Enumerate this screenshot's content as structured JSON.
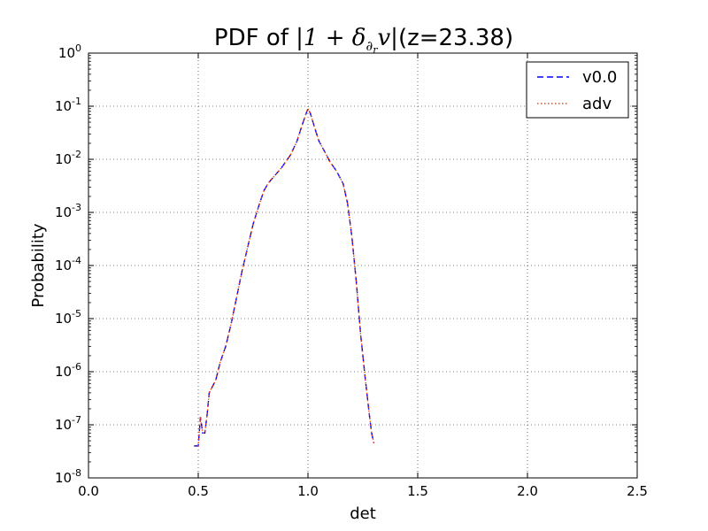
{
  "chart_data": {
    "type": "line",
    "title": {
      "prefix": "PDF of ",
      "math_open": "|1 + ",
      "delta": "δ",
      "subscript_main": "∂",
      "subscript_small": "r",
      "math_v": "v",
      "math_close": "|",
      "suffix": "(z=23.38)"
    },
    "xlabel": "det",
    "ylabel": "Probability",
    "xlim": [
      0.0,
      2.5
    ],
    "ylim_log10": [
      -8,
      0
    ],
    "yscale": "log",
    "grid": true,
    "legend_position": "top-right",
    "x_ticks": [
      "0.0",
      "0.5",
      "1.0",
      "1.5",
      "2.0",
      "2.5"
    ],
    "y_ticks": [
      {
        "base": "10",
        "exp": "0"
      },
      {
        "base": "10",
        "exp": "-1"
      },
      {
        "base": "10",
        "exp": "-2"
      },
      {
        "base": "10",
        "exp": "-3"
      },
      {
        "base": "10",
        "exp": "-4"
      },
      {
        "base": "10",
        "exp": "-5"
      },
      {
        "base": "10",
        "exp": "-6"
      },
      {
        "base": "10",
        "exp": "-7"
      },
      {
        "base": "10",
        "exp": "-8"
      }
    ],
    "x": [
      0.48,
      0.5,
      0.51,
      0.52,
      0.53,
      0.54,
      0.55,
      0.58,
      0.6,
      0.625,
      0.65,
      0.7,
      0.75,
      0.78,
      0.8,
      0.82,
      0.85,
      0.88,
      0.92,
      0.95,
      0.97,
      0.99,
      1.0,
      1.01,
      1.03,
      1.05,
      1.08,
      1.1,
      1.13,
      1.16,
      1.18,
      1.2,
      1.22,
      1.24,
      1.26,
      1.28,
      1.29,
      1.3
    ],
    "series": [
      {
        "name": "v0.0",
        "color": "#0000ff",
        "dash": "dashed",
        "values": [
          4e-08,
          4e-08,
          1.4e-07,
          7e-08,
          7e-08,
          1.5e-07,
          4e-07,
          7e-07,
          1.5e-06,
          3e-06,
          8e-06,
          8e-05,
          0.0006,
          0.0015,
          0.0026,
          0.0036,
          0.005,
          0.007,
          0.012,
          0.022,
          0.04,
          0.07,
          0.09,
          0.075,
          0.04,
          0.022,
          0.013,
          0.009,
          0.006,
          0.0035,
          0.0015,
          0.00035,
          5e-05,
          5e-06,
          8e-07,
          1.5e-07,
          7e-08,
          4.5e-08
        ]
      },
      {
        "name": "adv",
        "color": "#ff4500",
        "dash": "dotted",
        "values": [
          4e-08,
          4e-08,
          1.4e-07,
          7e-08,
          7e-08,
          1.5e-07,
          4e-07,
          7e-07,
          1.5e-06,
          3e-06,
          8e-06,
          8e-05,
          0.0006,
          0.0015,
          0.0026,
          0.0036,
          0.005,
          0.007,
          0.012,
          0.022,
          0.04,
          0.07,
          0.09,
          0.075,
          0.04,
          0.022,
          0.013,
          0.009,
          0.006,
          0.0035,
          0.0015,
          0.00035,
          5e-05,
          5e-06,
          8e-07,
          1.5e-07,
          7e-08,
          4.5e-08
        ]
      }
    ]
  }
}
